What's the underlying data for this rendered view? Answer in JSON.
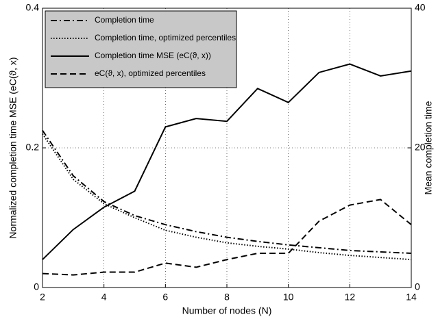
{
  "chart_data": {
    "type": "line",
    "xlabel": "Number of nodes (N)",
    "ylabel": "Normalized completion time MSE (eC(ϑ, x)",
    "y2label": "Mean completion time",
    "x": [
      2,
      3,
      4,
      5,
      6,
      7,
      8,
      9,
      10,
      11,
      12,
      13,
      14
    ],
    "xlim": [
      2,
      14
    ],
    "xticks": [
      2,
      4,
      6,
      8,
      10,
      12,
      14
    ],
    "ylim": [
      0,
      0.4
    ],
    "yticks": [
      0,
      0.2,
      0.4
    ],
    "y2lim": [
      0,
      40
    ],
    "y2ticks": [
      0,
      20,
      40
    ],
    "grid": true,
    "legend": "upper left",
    "series": [
      {
        "name": "Completion time",
        "color": "#000000",
        "dash": "dashdot",
        "axis": "y2",
        "values": [
          22.5,
          16,
          12.3,
          10.3,
          9,
          8,
          7.2,
          6.6,
          6.1,
          5.7,
          5.3,
          5.1,
          4.9
        ]
      },
      {
        "name": "Completion time, optimized percentiles",
        "color": "#000000",
        "dash": "dotted",
        "axis": "y2",
        "values": [
          22,
          15.5,
          12,
          10,
          8.2,
          7.2,
          6.4,
          5.9,
          5.5,
          5,
          4.6,
          4.3,
          4
        ]
      },
      {
        "name": "Completion time MSE (eC(ϑ, x))",
        "color": "#000000",
        "dash": "solid",
        "values": [
          0.04,
          0.083,
          0.115,
          0.138,
          0.23,
          0.242,
          0.238,
          0.285,
          0.265,
          0.308,
          0.32,
          0.303,
          0.31
        ]
      },
      {
        "name": "eC(ϑ, x), optimized percentiles",
        "color": "#000000",
        "dash": "dashed",
        "values": [
          0.02,
          0.018,
          0.022,
          0.022,
          0.035,
          0.029,
          0.04,
          0.049,
          0.049,
          0.095,
          0.118,
          0.126,
          0.09
        ]
      }
    ]
  }
}
